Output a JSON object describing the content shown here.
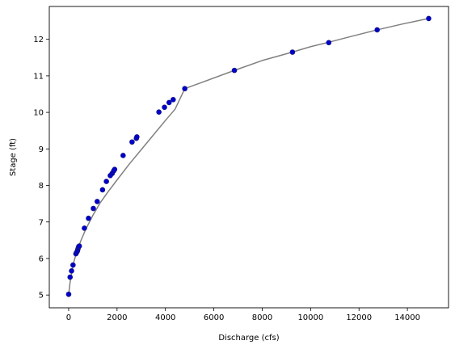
{
  "chart_data": {
    "type": "scatter",
    "xlabel": "Discharge (cfs)",
    "ylabel": "Stage (ft)",
    "xlim": [
      -800,
      15700
    ],
    "ylim": [
      4.65,
      12.9
    ],
    "xticks": [
      0,
      2000,
      4000,
      6000,
      8000,
      10000,
      12000,
      14000
    ],
    "yticks": [
      5,
      6,
      7,
      8,
      9,
      10,
      11,
      12
    ],
    "grid": false,
    "colors": {
      "marker_fill": "#0000cc",
      "marker_edge": "#1a1a7a",
      "curve": "#808080"
    },
    "series": [
      {
        "type": "scatter",
        "x": [
          0,
          60,
          120,
          180,
          300,
          330,
          360,
          380,
          400,
          420,
          440,
          650,
          820,
          1020,
          1180,
          1400,
          1560,
          1720,
          1800,
          1860,
          1900,
          2250,
          2620,
          2800,
          2820,
          3730,
          3960,
          4150,
          4320,
          4800,
          6850,
          9250,
          10750,
          12750,
          14880
        ],
        "y": [
          5.02,
          5.49,
          5.66,
          5.82,
          6.13,
          6.17,
          6.2,
          6.25,
          6.3,
          6.33,
          6.34,
          6.83,
          7.1,
          7.37,
          7.56,
          7.88,
          8.11,
          8.27,
          8.33,
          8.4,
          8.44,
          8.82,
          9.19,
          9.29,
          9.33,
          10.01,
          10.14,
          10.27,
          10.35,
          10.65,
          11.15,
          11.65,
          11.91,
          12.26,
          12.57
        ]
      },
      {
        "type": "line",
        "x": [
          0,
          50,
          100,
          200,
          300,
          500,
          700,
          1000,
          1300,
          1600,
          2000,
          2500,
          3000,
          3500,
          4000,
          4400,
          4800,
          5500,
          6850,
          8000,
          9250,
          10000,
          10750,
          11500,
          12750,
          13800,
          14880
        ],
        "y": [
          5.0,
          5.3,
          5.52,
          5.87,
          6.11,
          6.48,
          6.79,
          7.18,
          7.52,
          7.8,
          8.15,
          8.58,
          8.98,
          9.38,
          9.78,
          10.09,
          10.65,
          10.82,
          11.15,
          11.42,
          11.65,
          11.8,
          11.92,
          12.05,
          12.26,
          12.42,
          12.57
        ]
      }
    ]
  }
}
